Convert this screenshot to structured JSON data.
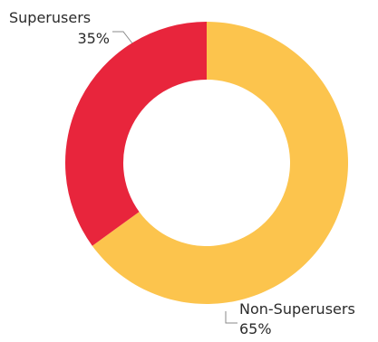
{
  "chart_data": {
    "type": "pie",
    "variant": "donut",
    "title": "",
    "legend": "none",
    "categories": [
      "Superusers",
      "Non-Superusers"
    ],
    "values": [
      35,
      65
    ],
    "value_labels": [
      "35%",
      "65%"
    ],
    "colors": [
      "#e8253c",
      "#fcc44d"
    ]
  }
}
